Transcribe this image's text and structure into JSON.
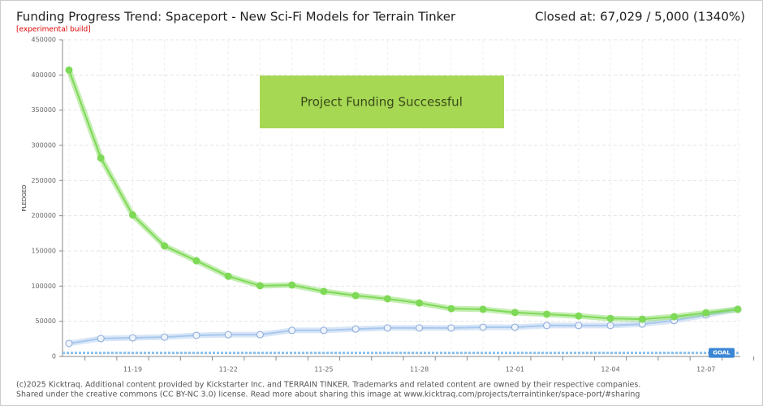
{
  "chart_data": {
    "type": "line",
    "title": "Funding Progress Trend: Spaceport - New Sci-Fi Models for Terrain Tinker",
    "subtitle": "[experimental build]",
    "status": "Closed at:  67,029 /  5,000 (1340%)",
    "banner": "Project Funding Successful",
    "y_label": "PLEDGED",
    "categories": [
      null,
      null,
      "11-19",
      null,
      null,
      "11-22",
      null,
      null,
      "11-25",
      null,
      null,
      "11-28",
      null,
      null,
      "12-01",
      null,
      null,
      "12-04",
      null,
      null,
      "12-07",
      null
    ],
    "series": [
      {
        "color": "#7ed957",
        "values": [
          407000,
          282000,
          201000,
          157000,
          136000,
          114000,
          100500,
          101500,
          92500,
          86500,
          82000,
          76000,
          68000,
          67000,
          62500,
          60000,
          57500,
          54000,
          53000,
          56500,
          62000,
          67029
        ]
      },
      {
        "color": "#a9c8ee",
        "values": [
          18500,
          25500,
          26500,
          27500,
          30000,
          31000,
          31000,
          37000,
          37000,
          39000,
          40500,
          40500,
          40500,
          41500,
          41500,
          44000,
          44000,
          44000,
          46000,
          51000,
          59000,
          67029
        ]
      }
    ],
    "goal": {
      "value": 5000,
      "label": "GOAL"
    },
    "ylim": [
      0,
      450000
    ],
    "yticks": [
      0,
      50000,
      100000,
      150000,
      200000,
      250000,
      300000,
      350000,
      400000,
      450000
    ],
    "grid": true,
    "footer": [
      "(c)2025 Kicktraq. Additional content provided by Kickstarter Inc. and TERRAIN TINKER. Trademarks and related content are owned by their respective companies.",
      "Shared under the creative commons (CC BY-NC 3.0) license. Read more about sharing this image at www.kicktraq.com/projects/terraintinker/space-port/#sharing"
    ]
  }
}
